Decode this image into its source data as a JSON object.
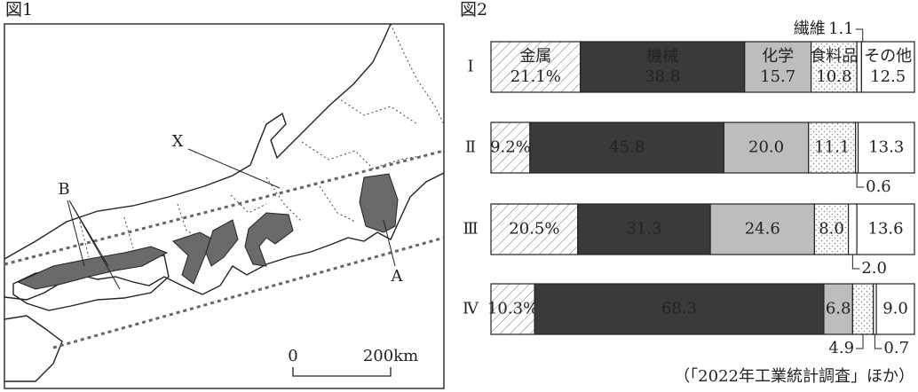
{
  "map": {
    "title": "図1",
    "labels": {
      "x": "X",
      "a": "A",
      "b": "B"
    },
    "scale": {
      "zero": "0",
      "distance": "200km"
    }
  },
  "chart_data": {
    "type": "stacked-barh",
    "title": "図2",
    "source": "（「2022年工業統計調査」ほか）",
    "categories": [
      "Ⅰ",
      "Ⅱ",
      "Ⅲ",
      "Ⅳ"
    ],
    "xlim": [
      0,
      100
    ],
    "series": [
      {
        "name": "金属",
        "color": "#ffffff",
        "pattern": "hatch",
        "values": [
          21.1,
          9.2,
          20.5,
          10.3
        ],
        "value_labels": [
          "21.1%",
          "9.2%",
          "20.5%",
          "10.3%"
        ]
      },
      {
        "name": "機械",
        "color": "#3a3a3a",
        "values": [
          38.8,
          45.8,
          31.3,
          68.3
        ],
        "value_labels": [
          "38.8",
          "45.8",
          "31.3",
          "68.3"
        ]
      },
      {
        "name": "化学",
        "color": "#bdbdbd",
        "values": [
          15.7,
          20.0,
          24.6,
          6.8
        ],
        "value_labels": [
          "15.7",
          "20.0",
          "24.6",
          "6.8"
        ]
      },
      {
        "name": "食料品",
        "color": "#ffffff",
        "pattern": "dots",
        "values": [
          10.8,
          11.1,
          8.0,
          4.9
        ],
        "value_labels": [
          "10.8",
          "11.1",
          "8.0",
          "4.9"
        ]
      },
      {
        "name": "繊維",
        "color": "#ffffff",
        "values": [
          1.1,
          0.6,
          2.0,
          0.7
        ],
        "value_labels": [
          "1.1",
          "0.6",
          "2.0",
          "0.7"
        ]
      },
      {
        "name": "その他",
        "color": "#ffffff",
        "values": [
          12.5,
          13.3,
          13.6,
          9.0
        ],
        "value_labels": [
          "12.5",
          "13.3",
          "13.6",
          "9.0"
        ]
      }
    ]
  }
}
